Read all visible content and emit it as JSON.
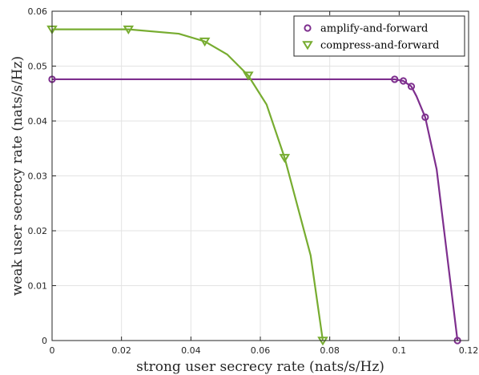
{
  "chart_data": {
    "type": "line",
    "xlabel": "strong user secrecy rate (nats/s/Hz)",
    "ylabel": "weak user secrecy rate (nats/s/Hz)",
    "xlim": [
      0,
      0.12
    ],
    "ylim": [
      0,
      0.06
    ],
    "x_ticks": [
      0,
      0.02,
      0.04,
      0.06,
      0.08,
      0.1,
      0.12
    ],
    "x_tick_labels": [
      "0",
      "0.02",
      "0.04",
      "0.06",
      "0.08",
      "0.1",
      "0.12"
    ],
    "y_ticks": [
      0,
      0.01,
      0.02,
      0.03,
      0.04,
      0.05,
      0.06
    ],
    "y_tick_labels": [
      "0",
      "0.01",
      "0.02",
      "0.03",
      "0.04",
      "0.05",
      "0.06"
    ],
    "grid": true,
    "legend_position": "top-right",
    "series": [
      {
        "name": "amplify-and-forward",
        "color": "#7e2f8e",
        "marker": "circle",
        "line": [
          [
            0,
            0.0476
          ],
          [
            0.0987,
            0.0476
          ],
          [
            0.1012,
            0.0473
          ],
          [
            0.1035,
            0.0463
          ],
          [
            0.105,
            0.0445
          ],
          [
            0.1075,
            0.0407
          ],
          [
            0.1108,
            0.0312
          ],
          [
            0.1168,
            0.0
          ]
        ],
        "markers": [
          [
            0,
            0.0476
          ],
          [
            0.0987,
            0.0476
          ],
          [
            0.1012,
            0.0473
          ],
          [
            0.1035,
            0.0463
          ],
          [
            0.1075,
            0.0407
          ],
          [
            0.1168,
            0.0
          ]
        ]
      },
      {
        "name": "compress-and-forward",
        "color": "#77ac30",
        "marker": "triangle-down",
        "line": [
          [
            0,
            0.0567
          ],
          [
            0.022,
            0.0567
          ],
          [
            0.0365,
            0.0559
          ],
          [
            0.044,
            0.0545
          ],
          [
            0.0505,
            0.0521
          ],
          [
            0.0565,
            0.0483
          ],
          [
            0.0618,
            0.043
          ],
          [
            0.067,
            0.0333
          ],
          [
            0.0745,
            0.0155
          ],
          [
            0.078,
            0.0
          ]
        ],
        "markers": [
          [
            0,
            0.0567
          ],
          [
            0.022,
            0.0567
          ],
          [
            0.044,
            0.0545
          ],
          [
            0.0565,
            0.0483
          ],
          [
            0.067,
            0.0333
          ],
          [
            0.078,
            0.0
          ]
        ]
      }
    ]
  }
}
